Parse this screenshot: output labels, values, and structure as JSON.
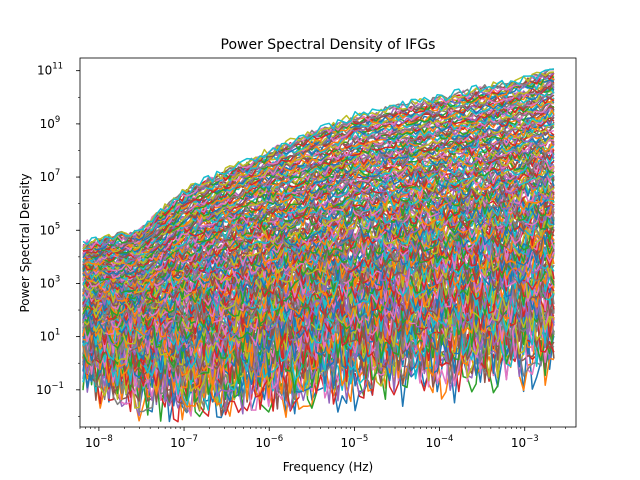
{
  "chart_data": {
    "type": "line",
    "title": "Power Spectral Density of IFGs",
    "xlabel": "Frequency (Hz)",
    "ylabel": "Power Spectral Density",
    "xscale": "log",
    "yscale": "log",
    "xlim": [
      6e-09,
      0.004
    ],
    "ylim": [
      0.004,
      300000000000.0
    ],
    "x_ticks": [
      {
        "value": 1e-08,
        "base": "10",
        "exp": "−8"
      },
      {
        "value": 1e-07,
        "base": "10",
        "exp": "−7"
      },
      {
        "value": 1e-06,
        "base": "10",
        "exp": "−6"
      },
      {
        "value": 1e-05,
        "base": "10",
        "exp": "−5"
      },
      {
        "value": 0.0001,
        "base": "10",
        "exp": "−4"
      },
      {
        "value": 0.001,
        "base": "10",
        "exp": "−3"
      }
    ],
    "y_ticks": [
      {
        "value": 0.1,
        "base": "10",
        "exp": "−1"
      },
      {
        "value": 10,
        "base": "10",
        "exp": "1"
      },
      {
        "value": 1000,
        "base": "10",
        "exp": "3"
      },
      {
        "value": 100000,
        "base": "10",
        "exp": "5"
      },
      {
        "value": 10000000,
        "base": "10",
        "exp": "7"
      },
      {
        "value": 1000000000,
        "base": "10",
        "exp": "9"
      },
      {
        "value": 100000000000,
        "base": "10",
        "exp": "11"
      }
    ],
    "grid": false,
    "legend": "none",
    "n_series": 220,
    "freq_range": [
      6.5e-09,
      0.0022
    ],
    "envelope": {
      "freq": [
        6.5e-09,
        3e-08,
        1e-07,
        1e-06,
        1e-05,
        0.0001,
        0.001,
        0.0022
      ],
      "upper_psd": [
        30000.0,
        100000.0,
        3000000.0,
        100000000.0,
        2000000000.0,
        10000000000.0,
        50000000000.0,
        120000000000.0
      ],
      "lower_psd": [
        0.5,
        0.1,
        0.05,
        0.1,
        0.3,
        0.5,
        1,
        2
      ]
    },
    "colors": [
      "#1f77b4",
      "#ff7f0e",
      "#2ca02c",
      "#d62728",
      "#9467bd",
      "#8c564b",
      "#e377c2",
      "#7f7f7f",
      "#bcbd22",
      "#17becf"
    ]
  }
}
